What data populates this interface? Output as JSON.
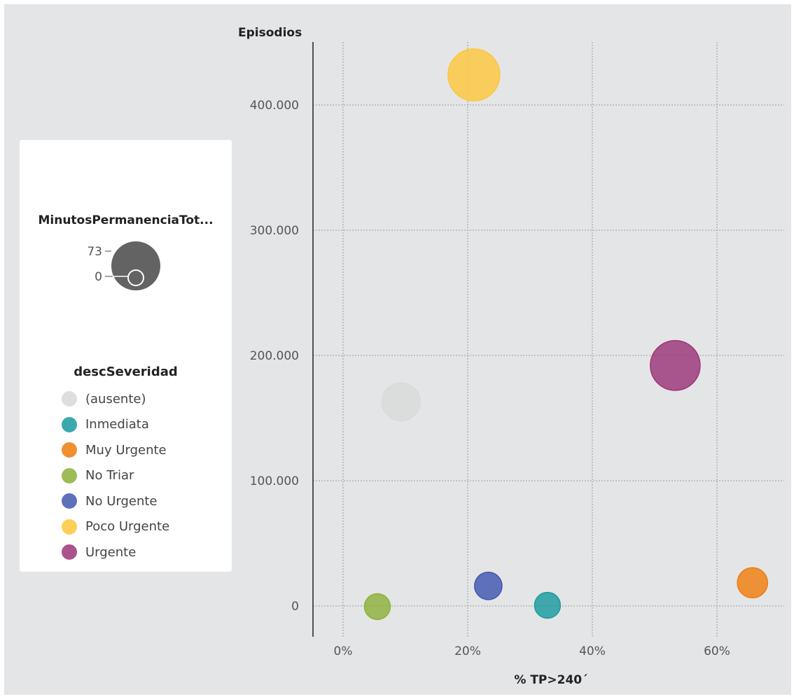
{
  "legend": {
    "size_title": "MinutosPermanenciaTot...",
    "size_max_label": "73",
    "size_min_label": "0",
    "severity_title": "descSeveridad",
    "items": [
      {
        "label": "(ausente)",
        "color": "#d9d9d9"
      },
      {
        "label": "Inmediata",
        "color": "#1a9aa0"
      },
      {
        "label": "Muy Urgente",
        "color": "#ef7d0f"
      },
      {
        "label": "No Triar",
        "color": "#8db13a"
      },
      {
        "label": "No Urgente",
        "color": "#4256b0"
      },
      {
        "label": "Poco Urgente",
        "color": "#fdc73d"
      },
      {
        "label": "Urgente",
        "color": "#9c3579"
      }
    ]
  },
  "chart_data": {
    "type": "scatter",
    "subtype": "bubble",
    "xlabel": "% TP>240´",
    "ylabel": "Episodios",
    "xlim": [
      -0.05,
      0.7
    ],
    "ylim": [
      -25000,
      450000
    ],
    "x_ticks": [
      {
        "v": 0,
        "label": "0%"
      },
      {
        "v": 0.2,
        "label": "20%"
      },
      {
        "v": 0.4,
        "label": "40%"
      },
      {
        "v": 0.6,
        "label": "60%"
      }
    ],
    "y_ticks": [
      {
        "v": 0,
        "label": "0"
      },
      {
        "v": 100000,
        "label": "100.000"
      },
      {
        "v": 200000,
        "label": "200.000"
      },
      {
        "v": 300000,
        "label": "300.000"
      },
      {
        "v": 400000,
        "label": "400.000"
      }
    ],
    "grid": true,
    "size_range": [
      0,
      73
    ],
    "points": [
      {
        "category": "(ausente)",
        "x": 0.093,
        "y": 163000,
        "size": 28
      },
      {
        "category": "Inmediata",
        "x": 0.328,
        "y": 500,
        "size": 6
      },
      {
        "category": "Muy Urgente",
        "x": 0.657,
        "y": 18500,
        "size": 12
      },
      {
        "category": "No Triar",
        "x": 0.055,
        "y": -500,
        "size": 6
      },
      {
        "category": "No Urgente",
        "x": 0.233,
        "y": 16000,
        "size": 8
      },
      {
        "category": "Poco Urgente",
        "x": 0.21,
        "y": 424000,
        "size": 73
      },
      {
        "category": "Urgente",
        "x": 0.533,
        "y": 192000,
        "size": 65
      }
    ]
  }
}
